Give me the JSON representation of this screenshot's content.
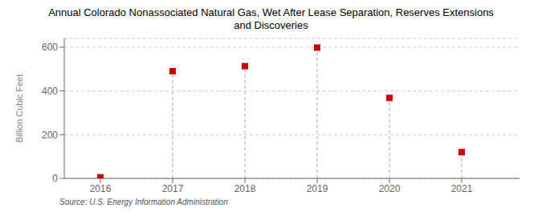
{
  "chart_data": {
    "type": "scatter",
    "title": "Annual Colorado Nonassociated Natural Gas, Wet After Lease Separation, Reserves Extensions\nand Discoveries",
    "ylabel": "Billion Cubic Feet",
    "annotations": [
      "Source: U.S. Energy Information Administration"
    ],
    "x": [
      2016,
      2017,
      2018,
      2019,
      2020,
      2021
    ],
    "values": [
      5,
      490,
      513,
      598,
      368,
      120
    ],
    "color": "#cc0000",
    "marker": "square",
    "xlim": [
      2015.5,
      2021.8
    ],
    "xticks": [
      2016,
      2017,
      2018,
      2019,
      2020,
      2021
    ],
    "ylim": [
      0,
      640
    ],
    "yticks": [
      0,
      200,
      400,
      600
    ],
    "grid": "y"
  }
}
